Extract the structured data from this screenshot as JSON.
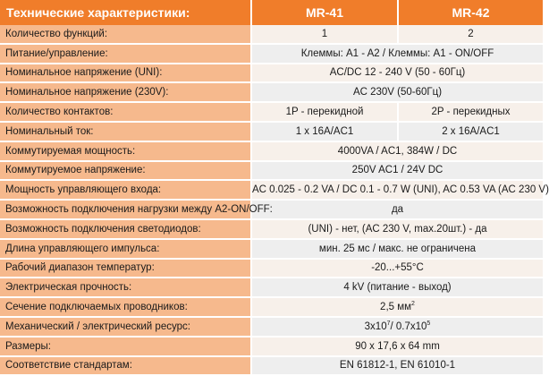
{
  "header": {
    "title": "Технические характеристики:",
    "model_a": "MR-41",
    "model_b": "MR-42"
  },
  "rows": [
    {
      "label": "Количество функций:",
      "a": "1",
      "b": "2"
    },
    {
      "label": "Питание/управление:",
      "value": "Клеммы: A1 - A2 / Клеммы: A1 - ON/OFF"
    },
    {
      "label": "Номинальное напряжение (UNI):",
      "value": "AC/DC 12 - 240 V (50 - 60Гц)"
    },
    {
      "label": "Номинальное напряжение (230V):",
      "value": "AC 230V (50-60Гц)"
    },
    {
      "label": "Количество контактов:",
      "a": "1P - перекидной",
      "b": "2P - перекидных"
    },
    {
      "label": "Номинальный ток:",
      "a": "1 x 16A/AC1",
      "b": "2 x 16A/AC1"
    },
    {
      "label": "Коммутируемая мощность:",
      "value": "4000VA / AC1, 384W / DC"
    },
    {
      "label": "Коммутируемое напряжение:",
      "value": "250V AC1 / 24V DC"
    },
    {
      "label": "Мощность управляющего входа:",
      "value": "AC 0.025 - 0.2 VA / DC 0.1 - 0.7 W (UNI), AC 0.53 VA (AC 230 V)"
    },
    {
      "label": "Возможность подключения нагрузки между A2-ON/OFF:",
      "value": "да"
    },
    {
      "label": "Возможность подключения светодиодов:",
      "value": "(UNI) - нет, (AC 230 V, max.20шт.) - да"
    },
    {
      "label": "Длина управляющего импульса:",
      "value": "мин. 25 мс / макс. не ограничена"
    },
    {
      "label": "Рабочий диапазон температур:",
      "value": "-20...+55°C"
    },
    {
      "label": "Электрическая прочность:",
      "value": "4 kV (питание - выход)"
    },
    {
      "label": "Сечение подключаемых проводников:",
      "value": "2,5 мм",
      "sup": "2"
    },
    {
      "label": "Механический / электрический ресурс:",
      "value_parts": [
        "3x10",
        "7",
        "/ 0.7x10",
        "5"
      ]
    },
    {
      "label": "Размеры:",
      "value": "90 x 17,6 x 64 mm"
    },
    {
      "label": "Соответствие стандартам:",
      "value": "EN 61812-1, EN 61010-1"
    }
  ]
}
